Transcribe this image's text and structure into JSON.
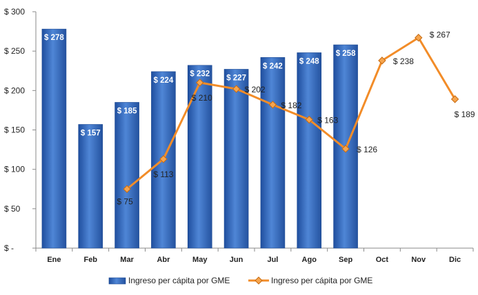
{
  "chart_data": {
    "type": "bar+line",
    "categories": [
      "Ene",
      "Feb",
      "Mar",
      "Abr",
      "May",
      "Jun",
      "Jul",
      "Ago",
      "Sep",
      "Oct",
      "Nov",
      "Dic"
    ],
    "ylim": [
      0,
      300
    ],
    "yticks": [
      0,
      50,
      100,
      150,
      200,
      250,
      300
    ],
    "ytick_labels": [
      "$ -",
      "$ 50",
      "$ 100",
      "$ 150",
      "$ 200",
      "$ 250",
      "$ 300"
    ],
    "grid": false,
    "legend_position": "bottom",
    "series": [
      {
        "name": "Ingreso per cápita por GME",
        "type": "bar",
        "color": "#3A6FC4",
        "values": [
          278,
          157,
          185,
          224,
          232,
          227,
          242,
          248,
          258,
          null,
          null,
          null
        ],
        "labels": [
          "$ 278",
          "$ 157",
          "$ 185",
          "$ 224",
          "$ 232",
          "$ 227",
          "$ 242",
          "$ 248",
          "$ 258",
          null,
          null,
          null
        ]
      },
      {
        "name": "Ingreso per cápita por GME",
        "type": "line",
        "color": "#F28C28",
        "values": [
          null,
          null,
          75,
          113,
          210,
          202,
          182,
          163,
          126,
          238,
          267,
          189
        ],
        "labels": [
          null,
          null,
          "$ 75",
          "$ 113",
          "$ 210",
          "$ 202",
          "$ 182",
          "$ 163",
          "$ 126",
          "$ 238",
          "$ 267",
          "$ 189"
        ]
      }
    ]
  }
}
